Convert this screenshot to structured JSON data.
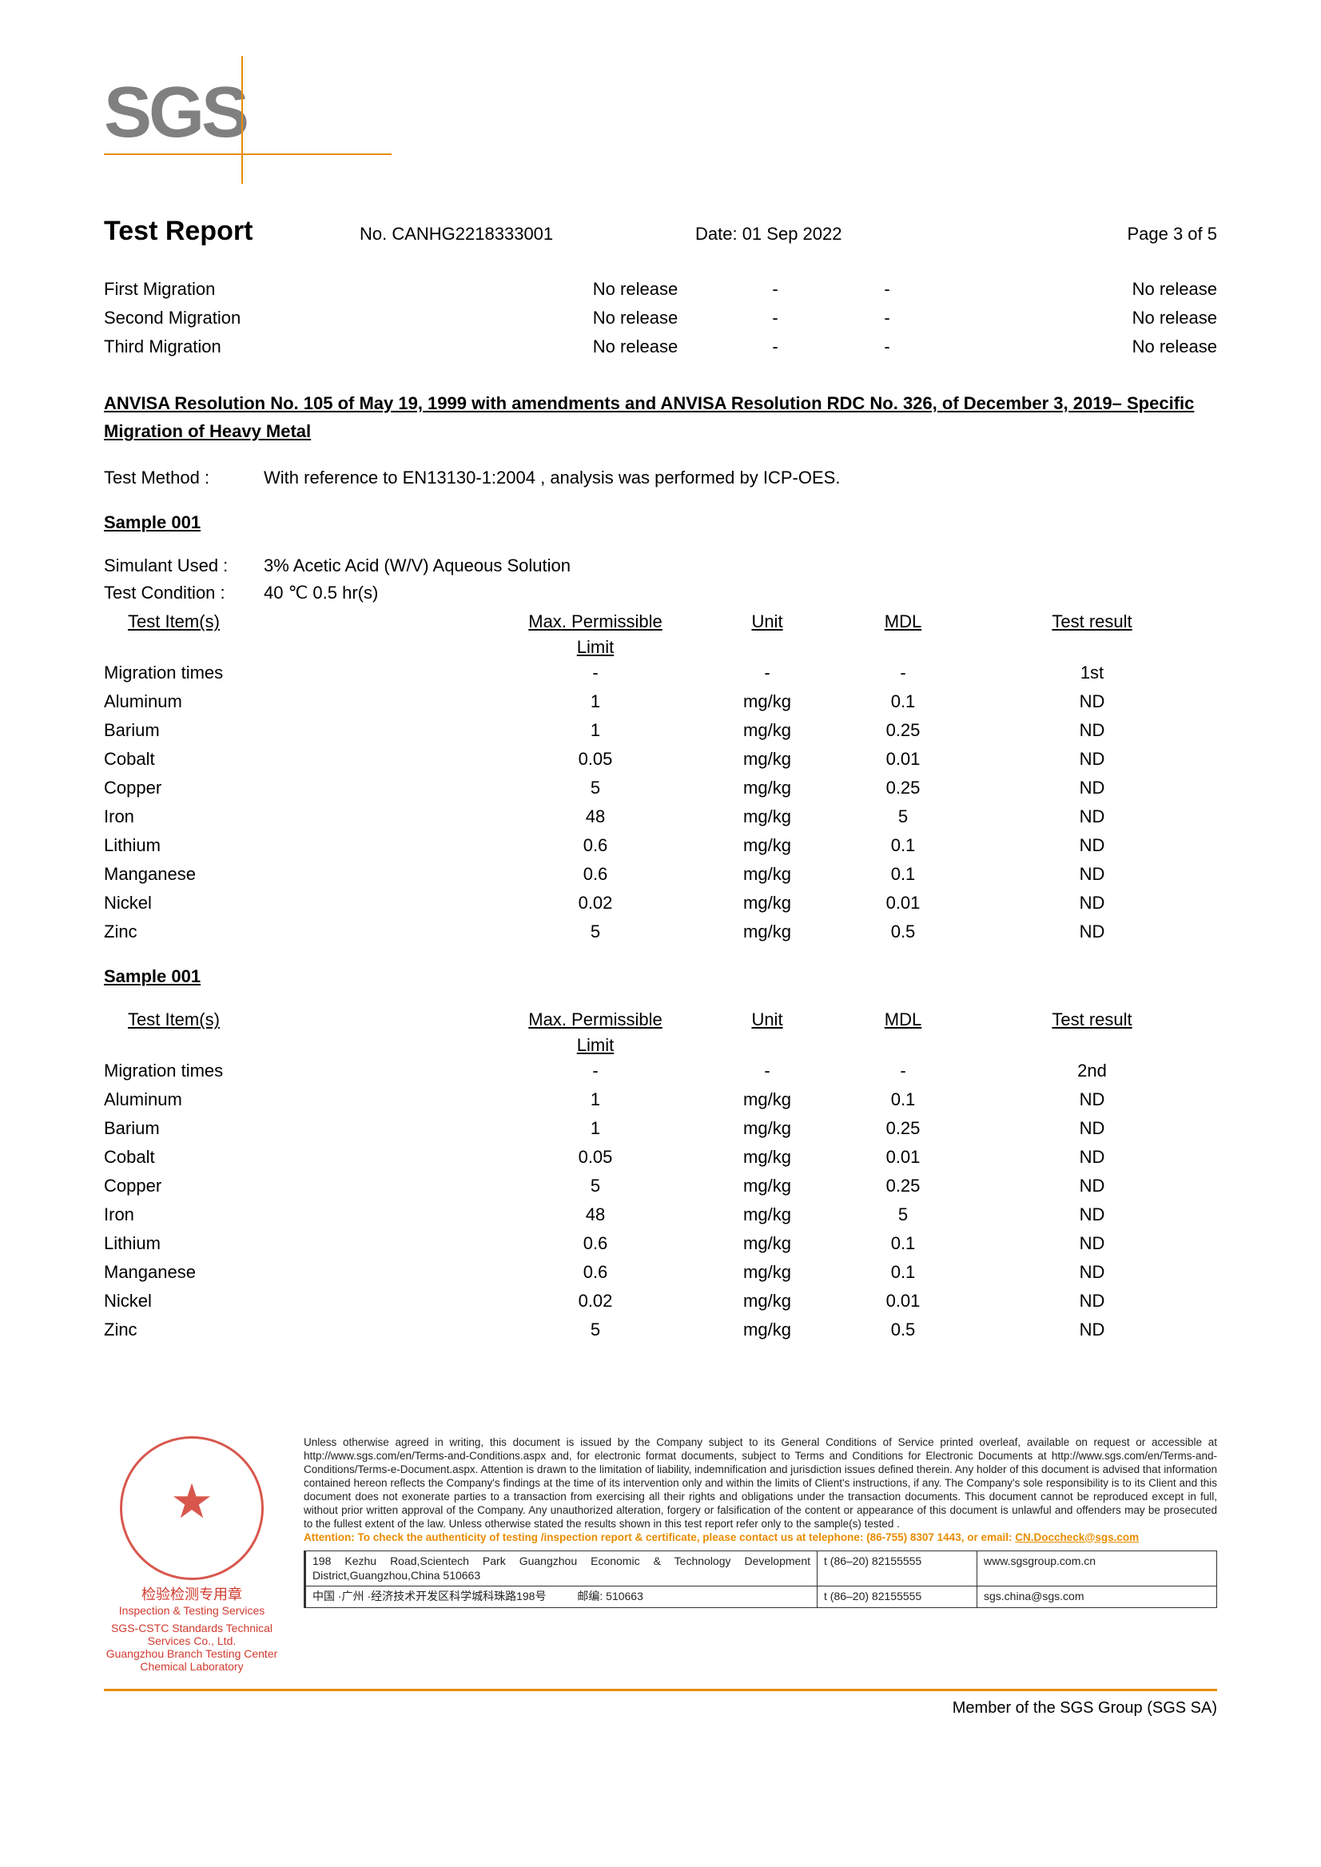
{
  "logo_text": "SGS",
  "header": {
    "title": "Test Report",
    "report_no": "No. CANHG2218333001",
    "date": "Date: 01 Sep 2022",
    "page": "Page 3 of 5"
  },
  "migration_rows": [
    {
      "label": "First Migration",
      "c2": "No release",
      "c3": "-",
      "c4": "-",
      "c5": "No release"
    },
    {
      "label": "Second  Migration",
      "c2": "No release",
      "c3": "-",
      "c4": "-",
      "c5": "No release"
    },
    {
      "label": "Third Migration",
      "c2": "No release",
      "c3": "-",
      "c4": "-",
      "c5": "No release"
    }
  ],
  "section_heading": "ANVISA Resolution No. 105 of May 19, 1999 with amendments and ANVISA Resolution  RDC No. 326, of December 3, 2019– Specific Migration of Heavy Metal",
  "test_method_label": "Test Method :",
  "test_method": "With reference to EN13130-1:2004 , analysis was performed by ICP-OES.",
  "sample_label": "Sample 001",
  "simulant_label": "Simulant Used :",
  "simulant": "3% Acetic Acid (W/V) Aqueous Solution",
  "condition_label": "Test Condition :",
  "condition": "40 ℃  0.5 hr(s)",
  "table_head": {
    "item": "Test Item(s)",
    "limit": "Max. Permissible",
    "limit2": "Limit",
    "unit": "Unit",
    "mdl": "MDL",
    "result": "Test result"
  },
  "table1_rows": [
    {
      "item": "Migration times",
      "limit": "-",
      "unit": "-",
      "mdl": "-",
      "result": "1st"
    },
    {
      "item": "Aluminum",
      "limit": "1",
      "unit": "mg/kg",
      "mdl": "0.1",
      "result": "ND"
    },
    {
      "item": "Barium",
      "limit": "1",
      "unit": "mg/kg",
      "mdl": "0.25",
      "result": "ND"
    },
    {
      "item": "Cobalt",
      "limit": "0.05",
      "unit": "mg/kg",
      "mdl": "0.01",
      "result": "ND"
    },
    {
      "item": "Copper",
      "limit": "5",
      "unit": "mg/kg",
      "mdl": "0.25",
      "result": "ND"
    },
    {
      "item": "Iron",
      "limit": "48",
      "unit": "mg/kg",
      "mdl": "5",
      "result": "ND"
    },
    {
      "item": "Lithium",
      "limit": "0.6",
      "unit": "mg/kg",
      "mdl": "0.1",
      "result": "ND"
    },
    {
      "item": "Manganese",
      "limit": "0.6",
      "unit": "mg/kg",
      "mdl": "0.1",
      "result": "ND"
    },
    {
      "item": "Nickel",
      "limit": "0.02",
      "unit": "mg/kg",
      "mdl": "0.01",
      "result": "ND"
    },
    {
      "item": "Zinc",
      "limit": "5",
      "unit": "mg/kg",
      "mdl": "0.5",
      "result": "ND"
    }
  ],
  "table2_rows": [
    {
      "item": "Migration times",
      "limit": "-",
      "unit": "-",
      "mdl": "-",
      "result": "2nd"
    },
    {
      "item": "Aluminum",
      "limit": "1",
      "unit": "mg/kg",
      "mdl": "0.1",
      "result": "ND"
    },
    {
      "item": "Barium",
      "limit": "1",
      "unit": "mg/kg",
      "mdl": "0.25",
      "result": "ND"
    },
    {
      "item": "Cobalt",
      "limit": "0.05",
      "unit": "mg/kg",
      "mdl": "0.01",
      "result": "ND"
    },
    {
      "item": "Copper",
      "limit": "5",
      "unit": "mg/kg",
      "mdl": "0.25",
      "result": "ND"
    },
    {
      "item": "Iron",
      "limit": "48",
      "unit": "mg/kg",
      "mdl": "5",
      "result": "ND"
    },
    {
      "item": "Lithium",
      "limit": "0.6",
      "unit": "mg/kg",
      "mdl": "0.1",
      "result": "ND"
    },
    {
      "item": "Manganese",
      "limit": "0.6",
      "unit": "mg/kg",
      "mdl": "0.1",
      "result": "ND"
    },
    {
      "item": "Nickel",
      "limit": "0.02",
      "unit": "mg/kg",
      "mdl": "0.01",
      "result": "ND"
    },
    {
      "item": "Zinc",
      "limit": "5",
      "unit": "mg/kg",
      "mdl": "0.5",
      "result": "ND"
    }
  ],
  "seal_cn1": "检验检测专用章",
  "seal_cn2": "Inspection & Testing Services",
  "seal_under1": "SGS-CSTC Standards Technical Services Co., Ltd.",
  "seal_under2": "Guangzhou Branch Testing Center Chemical Laboratory",
  "disclaimer_text": "Unless otherwise agreed in writing, this document is issued by the Company subject to its General Conditions of Service printed overleaf, available on request or accessible at http://www.sgs.com/en/Terms-and-Conditions.aspx and, for electronic format documents, subject to Terms and Conditions for Electronic Documents at http://www.sgs.com/en/Terms-and-Conditions/Terms-e-Document.aspx. Attention is drawn to the limitation of liability, indemnification and jurisdiction issues defined therein. Any holder of this document is advised that information contained hereon reflects the Company's findings at the time of its intervention only and within the limits of Client's instructions, if any. The Company's sole responsibility is to its Client and this document does not exonerate parties to a transaction from exercising all their rights and obligations under the transaction documents. This document cannot be reproduced except in full, without prior written approval of the Company. Any unauthorized alteration, forgery or falsification of the content or appearance of this document is unlawful and offenders may be prosecuted to the fullest extent of the law. Unless otherwise stated the results shown in this test report refer only to the sample(s) tested .",
  "attention": "Attention: To check the authenticity of testing /inspection report & certificate, please contact us at telephone: (86-755) 8307 1443, or email: ",
  "attention_email": "CN.Doccheck@sgs.com",
  "addr_en": "198 Kezhu Road,Scientech Park Guangzhou Economic & Technology Development District,Guangzhou,China  510663",
  "addr_cn": "中国 ·广州 ·经济技术开发区科学城科珠路198号",
  "post_label": "邮编:",
  "post_code": "510663",
  "phone1": "t  (86–20) 82155555",
  "phone2": "t  (86–20) 82155555",
  "web1": "www.sgsgroup.com.cn",
  "web2": "sgs.china@sgs.com",
  "member": "Member of the SGS Group (SGS SA)"
}
